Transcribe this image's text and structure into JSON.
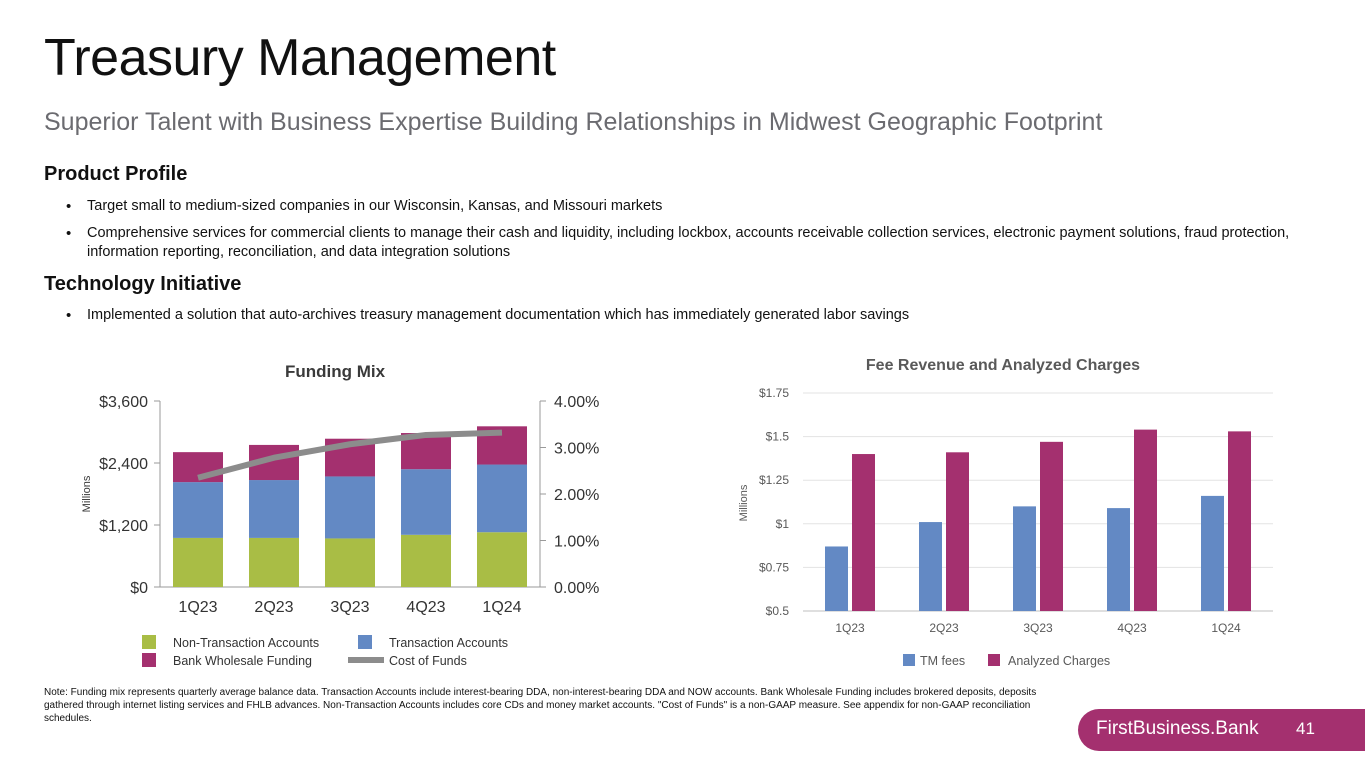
{
  "slide": {
    "title": "Treasury Management",
    "subtitle": "Superior Talent with Business Expertise Building Relationships in Midwest Geographic Footprint",
    "sections": [
      {
        "heading": "Product Profile",
        "bullets": [
          "Target small to medium-sized companies in our Wisconsin, Kansas, and Missouri markets",
          "Comprehensive services for commercial clients to manage their cash and liquidity, including lockbox, accounts receivable collection services, electronic payment solutions, fraud protection, information reporting, reconciliation, and data integration solutions"
        ]
      },
      {
        "heading": "Technology Initiative",
        "bullets": [
          "Implemented a solution that auto-archives treasury management documentation which has immediately generated labor savings"
        ]
      }
    ],
    "note": "Note: Funding mix represents quarterly average balance data. Transaction Accounts include interest-bearing DDA, non-interest-bearing DDA and NOW accounts. Bank Wholesale Funding includes brokered deposits, deposits gathered through internet listing services and FHLB advances. Non-Transaction Accounts includes core CDs and money market accounts. \"Cost of Funds\" is a non-GAAP measure. See appendix for non-GAAP reconciliation schedules.",
    "brand": "FirstBusiness.Bank",
    "page_number": "41",
    "colors": {
      "green": "#a9bd45",
      "blue": "#6389c4",
      "magenta": "#a4306f",
      "gray_line": "#8c8c8c"
    }
  },
  "chart_data": [
    {
      "type": "bar",
      "stacked": true,
      "title": "Funding Mix",
      "ylabel": "Millions",
      "categories": [
        "1Q23",
        "2Q23",
        "3Q23",
        "4Q23",
        "1Q24"
      ],
      "series": [
        {
          "name": "Non-Transaction Accounts",
          "color": "#a9bd45",
          "values": [
            950,
            950,
            940,
            1010,
            1060
          ]
        },
        {
          "name": "Transaction Accounts",
          "color": "#6389c4",
          "values": [
            1080,
            1120,
            1200,
            1270,
            1310
          ]
        },
        {
          "name": "Bank Wholesale Funding",
          "color": "#a4306f",
          "values": [
            580,
            680,
            730,
            700,
            740
          ]
        }
      ],
      "line_series": {
        "name": "Cost of Funds",
        "color": "#8c8c8c",
        "axis": "right",
        "values": [
          2.35,
          2.78,
          3.07,
          3.27,
          3.32
        ]
      },
      "ylim": [
        0,
        3600
      ],
      "yticks": [
        "$0",
        "$1,200",
        "$2,400",
        "$3,600"
      ],
      "ytick_values": [
        0,
        1200,
        2400,
        3600
      ],
      "y2lim": [
        0,
        4
      ],
      "y2ticks": [
        "0.00%",
        "1.00%",
        "2.00%",
        "3.00%",
        "4.00%"
      ],
      "y2tick_values": [
        0,
        1,
        2,
        3,
        4
      ],
      "legend": [
        "Non-Transaction Accounts",
        "Transaction Accounts",
        "Bank Wholesale Funding",
        "Cost of Funds"
      ]
    },
    {
      "type": "bar",
      "title": "Fee Revenue and Analyzed Charges",
      "ylabel": "Millions",
      "categories": [
        "1Q23",
        "2Q23",
        "3Q23",
        "4Q23",
        "1Q24"
      ],
      "series": [
        {
          "name": "TM fees",
          "color": "#6389c4",
          "values": [
            0.87,
            1.01,
            1.1,
            1.09,
            1.16
          ]
        },
        {
          "name": "Analyzed Charges",
          "color": "#a4306f",
          "values": [
            1.4,
            1.41,
            1.47,
            1.54,
            1.53
          ]
        }
      ],
      "ylim": [
        0.5,
        1.75
      ],
      "yticks": [
        "$0.5",
        "$0.75",
        "$1",
        "$1.25",
        "$1.5",
        "$1.75"
      ],
      "ytick_values": [
        0.5,
        0.75,
        1,
        1.25,
        1.5,
        1.75
      ],
      "grid": true,
      "legend": [
        "TM fees",
        "Analyzed Charges"
      ]
    }
  ]
}
